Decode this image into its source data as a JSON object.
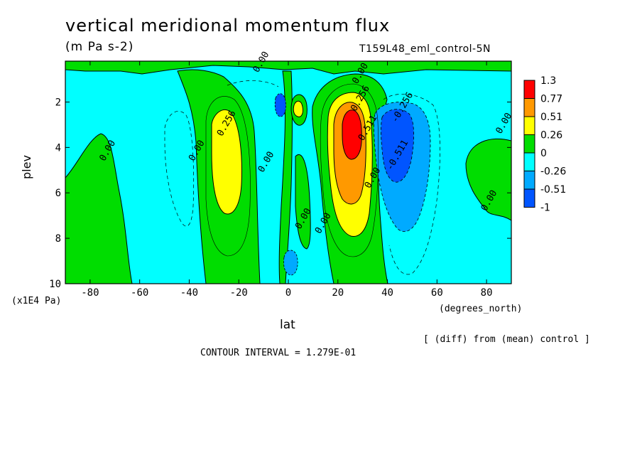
{
  "header": {
    "title": "vertical meridional momentum flux",
    "units": "(m Pa s-2)",
    "run_name": "T159L48_eml_control-5N"
  },
  "footer": {
    "diff_note": "[ (diff) from (mean) control ]",
    "contour_interval": "CONTOUR INTERVAL = 1.279E-01"
  },
  "chart_data": {
    "type": "heatmap",
    "xlabel": "lat",
    "x_units": "(degrees_north)",
    "ylabel": "plev",
    "y_units": "(x1E4 Pa)",
    "xlim": [
      -90,
      90
    ],
    "ylim": [
      10,
      0.2
    ],
    "y_inverted": true,
    "x_ticks": [
      -80,
      -60,
      -40,
      -20,
      0,
      20,
      40,
      60,
      80
    ],
    "y_ticks": [
      2,
      4,
      6,
      8,
      10
    ],
    "colorbar": {
      "labels": [
        "1.3",
        "0.77",
        "0.51",
        "0.26",
        "0",
        "-0.26",
        "-0.51",
        "-1"
      ],
      "colors": [
        "#ff0000",
        "#ff9900",
        "#ffff00",
        "#00dd00",
        "#00ffff",
        "#00aaff",
        "#0055ff"
      ]
    },
    "background_color": "#00ffff",
    "contour_labels": [
      {
        "text": "0.00",
        "lat": -10,
        "plev": 0.3
      },
      {
        "text": "0.00",
        "lat": 30,
        "plev": 0.8
      },
      {
        "text": "0.256",
        "lat": 30,
        "plev": 1.9
      },
      {
        "text": "-0.256",
        "lat": 47,
        "plev": 2.3
      },
      {
        "text": "0.00",
        "lat": 88,
        "plev": 3.0
      },
      {
        "text": "0.256",
        "lat": -24,
        "plev": 3.0
      },
      {
        "text": "0.511",
        "lat": 33,
        "plev": 3.2
      },
      {
        "text": "0.00",
        "lat": -72,
        "plev": 4.2
      },
      {
        "text": "0.00",
        "lat": -36,
        "plev": 4.2
      },
      {
        "text": "0.00",
        "lat": -8,
        "plev": 4.7
      },
      {
        "text": "-0.511",
        "lat": 45,
        "plev": 4.4
      },
      {
        "text": "0.00",
        "lat": 35,
        "plev": 5.4
      },
      {
        "text": "0.00",
        "lat": 82,
        "plev": 6.4
      },
      {
        "text": "0.00",
        "lat": 7,
        "plev": 7.2
      },
      {
        "text": "0.00",
        "lat": 15,
        "plev": 7.4
      }
    ]
  }
}
